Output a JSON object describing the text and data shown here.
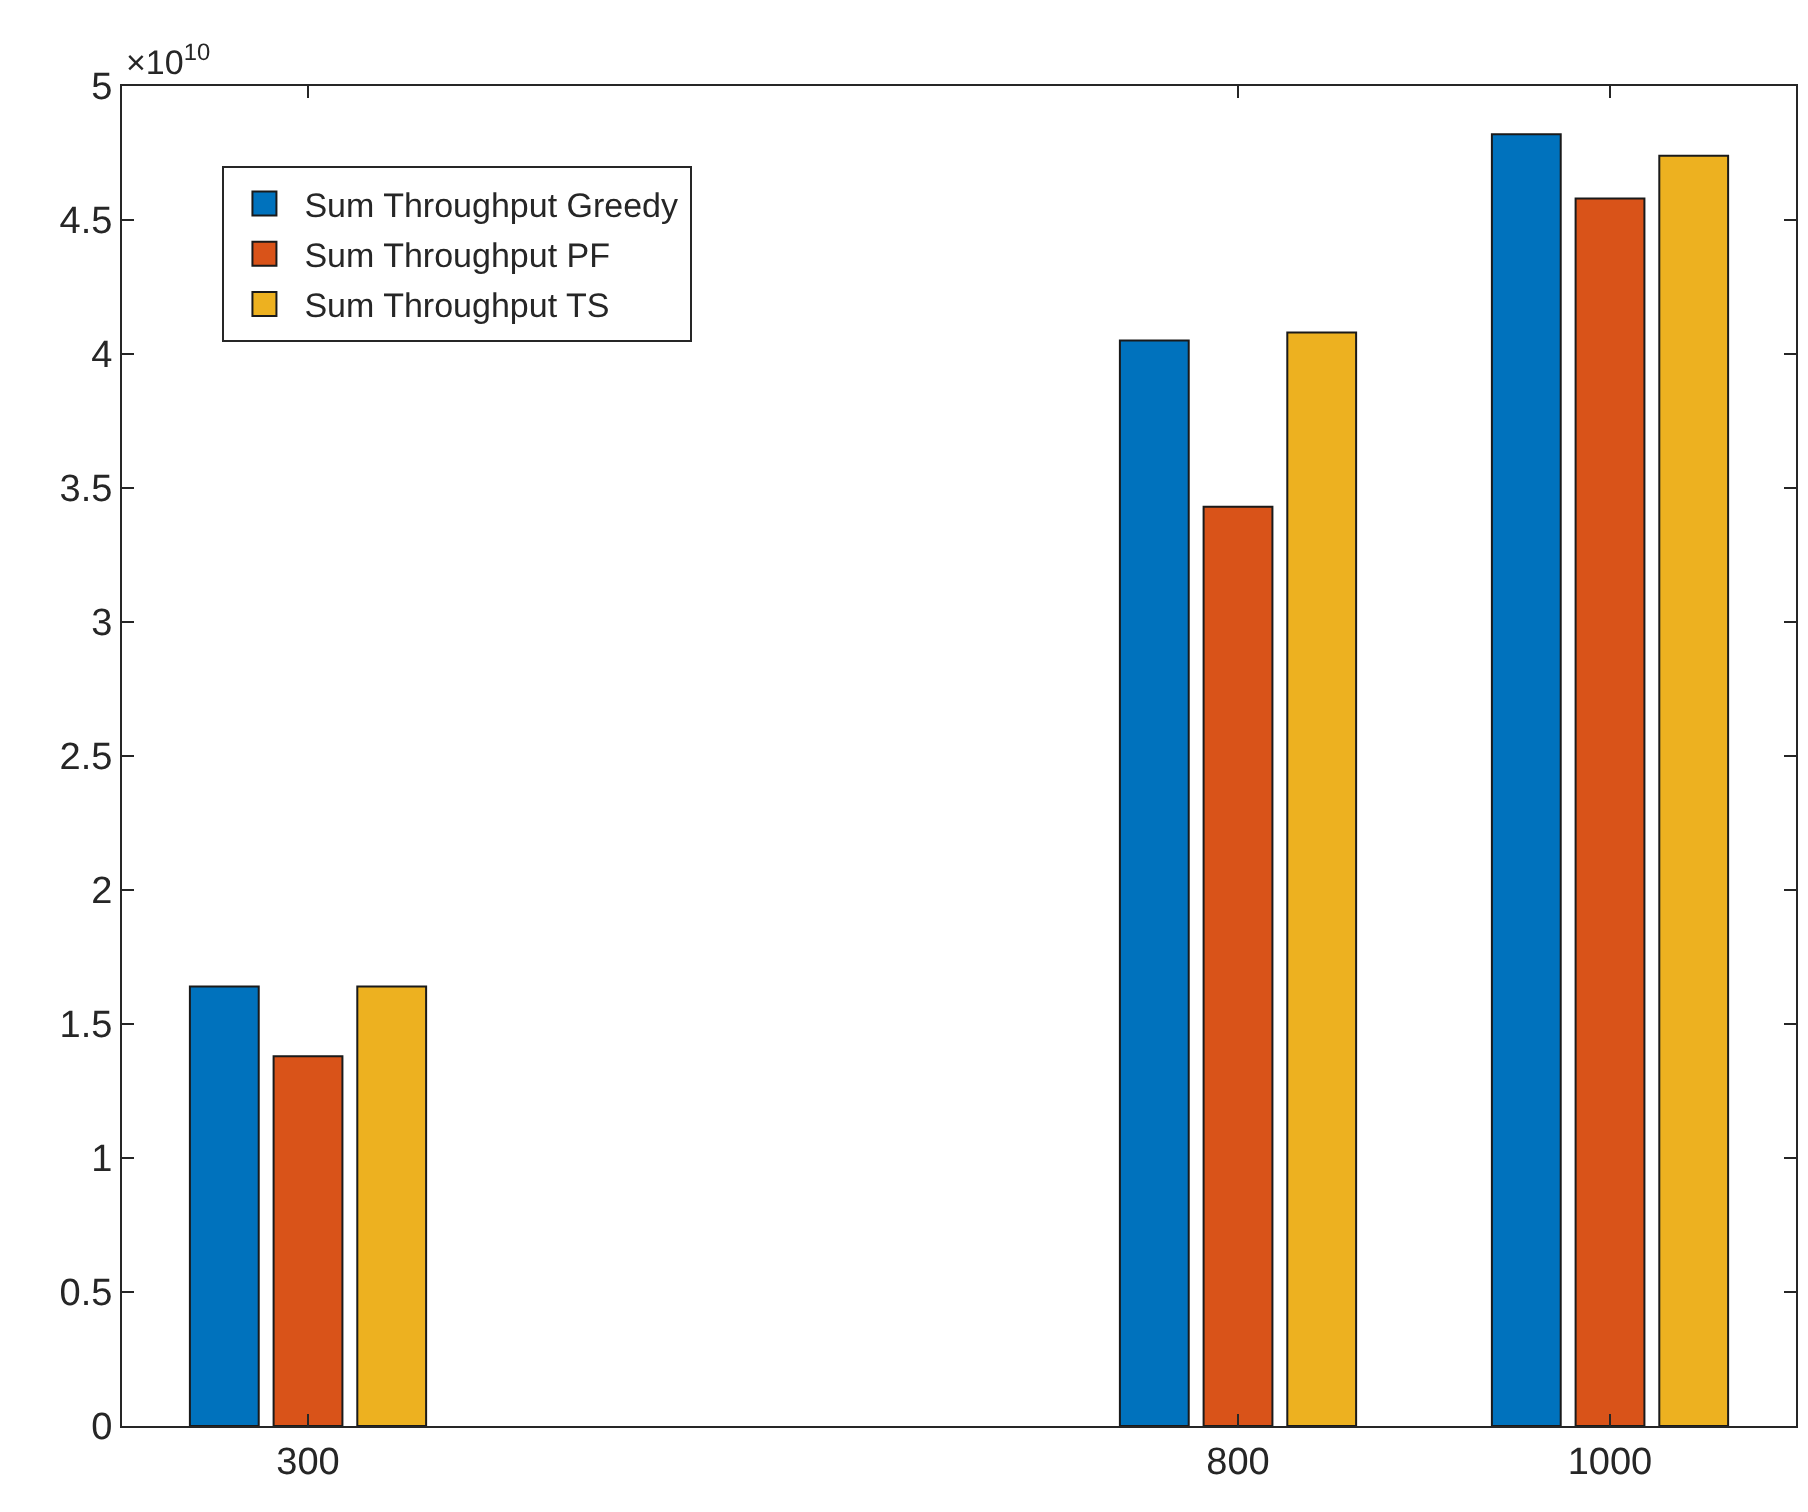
{
  "chart_data": {
    "type": "bar",
    "x": [
      300,
      800,
      1000
    ],
    "series": [
      {
        "name": "Sum Throughput Greedy",
        "color": "#0072bd",
        "values": [
          1.64,
          4.05,
          4.82
        ]
      },
      {
        "name": "Sum Throughput PF",
        "color": "#d95319",
        "values": [
          1.38,
          3.43,
          4.58
        ]
      },
      {
        "name": "Sum Throughput TS",
        "color": "#edb120",
        "values": [
          1.64,
          4.08,
          4.74
        ]
      }
    ],
    "xlim": [
      200,
      1100
    ],
    "xticks": [
      300,
      800,
      1000
    ],
    "ylim": [
      0,
      5
    ],
    "yticks": [
      0,
      0.5,
      1,
      1.5,
      2,
      2.5,
      3,
      3.5,
      4,
      4.5,
      5
    ],
    "annotations": [
      "×10$^{10}$"
    ],
    "legend": "top left"
  }
}
